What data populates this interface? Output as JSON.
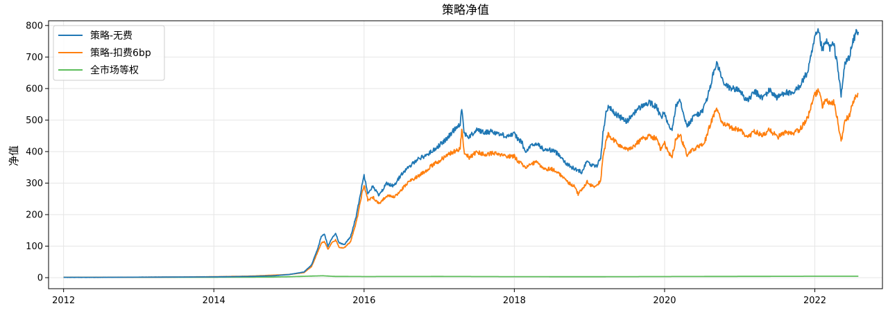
{
  "chart_data": {
    "type": "line",
    "title": "策略净值",
    "xlabel": "",
    "ylabel": "净值",
    "xlim": [
      2011.8,
      2022.9
    ],
    "ylim": [
      -35,
      815
    ],
    "x_ticks": [
      2012,
      2014,
      2016,
      2018,
      2020,
      2022
    ],
    "y_ticks": [
      0,
      100,
      200,
      300,
      400,
      500,
      600,
      700,
      800
    ],
    "grid": true,
    "legend_position": "top-left",
    "series": [
      {
        "name": "策略-无费",
        "color": "#1f77b4",
        "points": [
          [
            2012.0,
            1
          ],
          [
            2012.5,
            1
          ],
          [
            2013.0,
            1.5
          ],
          [
            2013.5,
            2
          ],
          [
            2014.0,
            2.5
          ],
          [
            2014.5,
            4
          ],
          [
            2014.8,
            6
          ],
          [
            2015.0,
            10
          ],
          [
            2015.2,
            18
          ],
          [
            2015.3,
            40
          ],
          [
            2015.38,
            90
          ],
          [
            2015.43,
            130
          ],
          [
            2015.47,
            140
          ],
          [
            2015.52,
            100
          ],
          [
            2015.57,
            125
          ],
          [
            2015.62,
            140
          ],
          [
            2015.67,
            110
          ],
          [
            2015.74,
            105
          ],
          [
            2015.82,
            130
          ],
          [
            2015.9,
            200
          ],
          [
            2015.97,
            290
          ],
          [
            2016.0,
            325
          ],
          [
            2016.05,
            270
          ],
          [
            2016.12,
            290
          ],
          [
            2016.2,
            260
          ],
          [
            2016.3,
            300
          ],
          [
            2016.4,
            290
          ],
          [
            2016.5,
            330
          ],
          [
            2016.6,
            350
          ],
          [
            2016.7,
            375
          ],
          [
            2016.8,
            385
          ],
          [
            2016.9,
            400
          ],
          [
            2017.0,
            420
          ],
          [
            2017.1,
            440
          ],
          [
            2017.2,
            470
          ],
          [
            2017.28,
            490
          ],
          [
            2017.3,
            540
          ],
          [
            2017.33,
            460
          ],
          [
            2017.4,
            445
          ],
          [
            2017.5,
            470
          ],
          [
            2017.6,
            460
          ],
          [
            2017.7,
            465
          ],
          [
            2017.8,
            455
          ],
          [
            2017.9,
            450
          ],
          [
            2018.0,
            455
          ],
          [
            2018.05,
            440
          ],
          [
            2018.1,
            430
          ],
          [
            2018.15,
            395
          ],
          [
            2018.2,
            415
          ],
          [
            2018.3,
            425
          ],
          [
            2018.4,
            405
          ],
          [
            2018.5,
            405
          ],
          [
            2018.6,
            390
          ],
          [
            2018.7,
            360
          ],
          [
            2018.8,
            345
          ],
          [
            2018.9,
            335
          ],
          [
            2018.97,
            375
          ],
          [
            2019.0,
            360
          ],
          [
            2019.05,
            355
          ],
          [
            2019.1,
            355
          ],
          [
            2019.15,
            380
          ],
          [
            2019.18,
            460
          ],
          [
            2019.22,
            520
          ],
          [
            2019.25,
            545
          ],
          [
            2019.3,
            530
          ],
          [
            2019.4,
            510
          ],
          [
            2019.5,
            495
          ],
          [
            2019.6,
            525
          ],
          [
            2019.7,
            545
          ],
          [
            2019.8,
            555
          ],
          [
            2019.9,
            540
          ],
          [
            2019.95,
            505
          ],
          [
            2020.0,
            525
          ],
          [
            2020.05,
            480
          ],
          [
            2020.1,
            470
          ],
          [
            2020.15,
            545
          ],
          [
            2020.2,
            570
          ],
          [
            2020.3,
            480
          ],
          [
            2020.4,
            515
          ],
          [
            2020.5,
            525
          ],
          [
            2020.55,
            560
          ],
          [
            2020.6,
            595
          ],
          [
            2020.65,
            650
          ],
          [
            2020.7,
            680
          ],
          [
            2020.75,
            640
          ],
          [
            2020.8,
            610
          ],
          [
            2020.9,
            600
          ],
          [
            2021.0,
            595
          ],
          [
            2021.1,
            560
          ],
          [
            2021.2,
            590
          ],
          [
            2021.3,
            570
          ],
          [
            2021.4,
            595
          ],
          [
            2021.5,
            570
          ],
          [
            2021.6,
            590
          ],
          [
            2021.7,
            580
          ],
          [
            2021.8,
            610
          ],
          [
            2021.9,
            650
          ],
          [
            2021.95,
            700
          ],
          [
            2022.0,
            760
          ],
          [
            2022.05,
            780
          ],
          [
            2022.1,
            720
          ],
          [
            2022.15,
            750
          ],
          [
            2022.2,
            730
          ],
          [
            2022.25,
            740
          ],
          [
            2022.3,
            680
          ],
          [
            2022.35,
            575
          ],
          [
            2022.4,
            680
          ],
          [
            2022.45,
            695
          ],
          [
            2022.5,
            740
          ],
          [
            2022.55,
            780
          ],
          [
            2022.58,
            780
          ]
        ]
      },
      {
        "name": "策略-扣费6bp",
        "color": "#ff7f0e",
        "points": [
          [
            2012.0,
            1
          ],
          [
            2012.5,
            1
          ],
          [
            2013.0,
            1.5
          ],
          [
            2013.5,
            2
          ],
          [
            2014.0,
            3
          ],
          [
            2014.5,
            5
          ],
          [
            2014.8,
            8
          ],
          [
            2015.0,
            10
          ],
          [
            2015.2,
            16
          ],
          [
            2015.3,
            35
          ],
          [
            2015.38,
            80
          ],
          [
            2015.43,
            110
          ],
          [
            2015.47,
            115
          ],
          [
            2015.52,
            90
          ],
          [
            2015.57,
            110
          ],
          [
            2015.62,
            120
          ],
          [
            2015.67,
            95
          ],
          [
            2015.74,
            95
          ],
          [
            2015.82,
            115
          ],
          [
            2015.9,
            180
          ],
          [
            2015.97,
            265
          ],
          [
            2016.0,
            295
          ],
          [
            2016.05,
            245
          ],
          [
            2016.12,
            255
          ],
          [
            2016.2,
            235
          ],
          [
            2016.3,
            260
          ],
          [
            2016.4,
            255
          ],
          [
            2016.5,
            280
          ],
          [
            2016.6,
            305
          ],
          [
            2016.7,
            320
          ],
          [
            2016.8,
            335
          ],
          [
            2016.9,
            355
          ],
          [
            2017.0,
            370
          ],
          [
            2017.1,
            390
          ],
          [
            2017.2,
            400
          ],
          [
            2017.28,
            410
          ],
          [
            2017.3,
            475
          ],
          [
            2017.33,
            400
          ],
          [
            2017.4,
            380
          ],
          [
            2017.5,
            400
          ],
          [
            2017.6,
            390
          ],
          [
            2017.7,
            395
          ],
          [
            2017.8,
            390
          ],
          [
            2017.9,
            385
          ],
          [
            2018.0,
            385
          ],
          [
            2018.05,
            370
          ],
          [
            2018.1,
            365
          ],
          [
            2018.15,
            345
          ],
          [
            2018.2,
            360
          ],
          [
            2018.3,
            365
          ],
          [
            2018.4,
            345
          ],
          [
            2018.5,
            345
          ],
          [
            2018.6,
            330
          ],
          [
            2018.7,
            305
          ],
          [
            2018.8,
            290
          ],
          [
            2018.85,
            265
          ],
          [
            2018.9,
            280
          ],
          [
            2018.97,
            305
          ],
          [
            2019.0,
            295
          ],
          [
            2019.05,
            290
          ],
          [
            2019.1,
            290
          ],
          [
            2019.15,
            310
          ],
          [
            2019.18,
            385
          ],
          [
            2019.22,
            430
          ],
          [
            2019.25,
            455
          ],
          [
            2019.3,
            440
          ],
          [
            2019.4,
            420
          ],
          [
            2019.5,
            405
          ],
          [
            2019.6,
            420
          ],
          [
            2019.7,
            440
          ],
          [
            2019.8,
            450
          ],
          [
            2019.9,
            440
          ],
          [
            2019.95,
            405
          ],
          [
            2020.0,
            425
          ],
          [
            2020.05,
            395
          ],
          [
            2020.1,
            385
          ],
          [
            2020.15,
            440
          ],
          [
            2020.2,
            455
          ],
          [
            2020.3,
            390
          ],
          [
            2020.4,
            410
          ],
          [
            2020.5,
            420
          ],
          [
            2020.55,
            440
          ],
          [
            2020.6,
            480
          ],
          [
            2020.65,
            515
          ],
          [
            2020.7,
            535
          ],
          [
            2020.75,
            500
          ],
          [
            2020.8,
            485
          ],
          [
            2020.9,
            475
          ],
          [
            2021.0,
            470
          ],
          [
            2021.1,
            445
          ],
          [
            2021.2,
            465
          ],
          [
            2021.3,
            450
          ],
          [
            2021.4,
            470
          ],
          [
            2021.5,
            445
          ],
          [
            2021.6,
            460
          ],
          [
            2021.7,
            455
          ],
          [
            2021.8,
            470
          ],
          [
            2021.9,
            505
          ],
          [
            2021.95,
            540
          ],
          [
            2022.0,
            580
          ],
          [
            2022.05,
            595
          ],
          [
            2022.1,
            545
          ],
          [
            2022.15,
            565
          ],
          [
            2022.2,
            550
          ],
          [
            2022.25,
            555
          ],
          [
            2022.3,
            505
          ],
          [
            2022.35,
            430
          ],
          [
            2022.4,
            500
          ],
          [
            2022.45,
            510
          ],
          [
            2022.5,
            545
          ],
          [
            2022.55,
            580
          ],
          [
            2022.58,
            585
          ]
        ]
      },
      {
        "name": "全市场等权",
        "color": "#5cbd5a",
        "points": [
          [
            2012.0,
            1
          ],
          [
            2013.0,
            1.1
          ],
          [
            2014.0,
            1.3
          ],
          [
            2014.8,
            2
          ],
          [
            2015.0,
            3
          ],
          [
            2015.3,
            5
          ],
          [
            2015.45,
            6
          ],
          [
            2015.6,
            4
          ],
          [
            2016.0,
            3.5
          ],
          [
            2017.0,
            3.8
          ],
          [
            2018.0,
            3.2
          ],
          [
            2019.0,
            3
          ],
          [
            2020.0,
            3.5
          ],
          [
            2021.0,
            4
          ],
          [
            2022.0,
            4.5
          ],
          [
            2022.58,
            4.5
          ]
        ]
      }
    ]
  }
}
